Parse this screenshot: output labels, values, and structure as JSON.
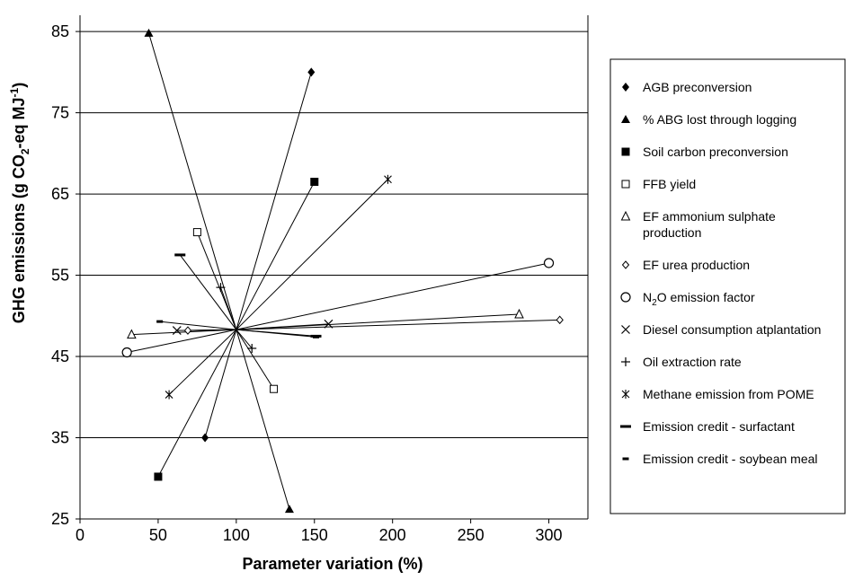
{
  "chart_data": {
    "type": "scatter",
    "xlabel": "Parameter variation (%)",
    "ylabel_parts": [
      "GHG emissions (g CO",
      "2",
      "-eq MJ",
      "-1",
      ")"
    ],
    "xlim": [
      0,
      325
    ],
    "ylim": [
      25,
      87
    ],
    "xticks": [
      0,
      50,
      100,
      150,
      200,
      250,
      300
    ],
    "yticks": [
      25,
      35,
      45,
      55,
      65,
      75,
      85
    ],
    "grid": "horizontal",
    "legend_position": "right",
    "center": {
      "x": 100,
      "y": 48.3
    },
    "series": [
      {
        "name": "AGB preconversion",
        "marker": "diamond-filled",
        "points": [
          [
            80,
            35
          ],
          [
            148,
            80
          ]
        ]
      },
      {
        "name": "% ABG lost through logging",
        "marker": "triangle-filled",
        "points": [
          [
            44,
            84.8
          ],
          [
            134,
            26.2
          ]
        ]
      },
      {
        "name": "Soil carbon preconversion",
        "marker": "square-filled",
        "points": [
          [
            50,
            30.2
          ],
          [
            150,
            66.5
          ]
        ]
      },
      {
        "name": "FFB yield",
        "marker": "square-open",
        "points": [
          [
            75,
            60.3
          ],
          [
            124,
            41
          ]
        ]
      },
      {
        "name": "EF ammonium sulphate production",
        "name_lines": [
          "EF ammonium sulphate",
          "production"
        ],
        "marker": "triangle-open",
        "points": [
          [
            33,
            47.7
          ],
          [
            281,
            50.2
          ]
        ]
      },
      {
        "name": "EF urea production",
        "marker": "diamond-open",
        "points": [
          [
            69,
            48.2
          ],
          [
            307,
            49.5
          ]
        ]
      },
      {
        "name": "N2O emission factor",
        "name_parts": [
          "N",
          "2",
          "O emission factor"
        ],
        "marker": "circle-open",
        "points": [
          [
            30,
            45.5
          ],
          [
            300,
            56.5
          ]
        ]
      },
      {
        "name": "Diesel consumption atplantation",
        "marker": "x",
        "points": [
          [
            62,
            48.2
          ],
          [
            159,
            49
          ]
        ]
      },
      {
        "name": "Oil extraction rate",
        "marker": "plus",
        "points": [
          [
            90,
            53.5
          ],
          [
            110,
            46
          ]
        ]
      },
      {
        "name": "Methane emission from POME",
        "marker": "asterisk",
        "points": [
          [
            57,
            40.3
          ],
          [
            197,
            66.8
          ]
        ]
      },
      {
        "name": "Emission credit - surfactant",
        "marker": "dash-long",
        "points": [
          [
            64,
            57.5
          ],
          [
            151,
            47.5
          ]
        ]
      },
      {
        "name": "Emission credit - soybean meal",
        "marker": "dash-short",
        "points": [
          [
            51,
            49.3
          ],
          [
            151,
            47.4
          ]
        ]
      }
    ]
  }
}
